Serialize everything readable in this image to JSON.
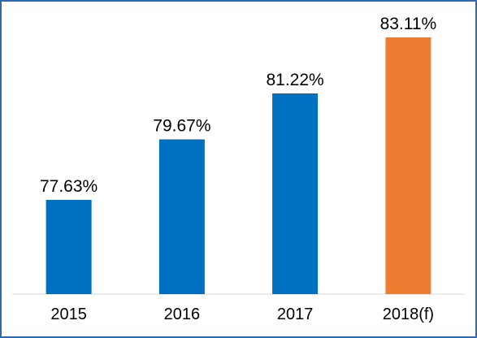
{
  "chart_data": {
    "type": "bar",
    "categories": [
      "2015",
      "2016",
      "2017",
      "2018(f)"
    ],
    "values": [
      77.63,
      79.67,
      81.22,
      83.11
    ],
    "value_labels": [
      "77.63%",
      "79.67%",
      "81.22%",
      "83.11%"
    ],
    "title": "",
    "xlabel": "",
    "ylabel": "",
    "grid": false,
    "legend": "none",
    "colors": {
      "actual": "#0070c0",
      "forecast": "#ed7d31",
      "frame": "#2f67b1"
    },
    "forecast_index": 3
  }
}
